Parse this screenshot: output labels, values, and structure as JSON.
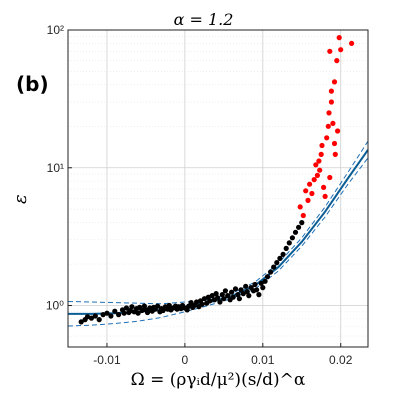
{
  "chart_data": {
    "type": "scatter",
    "panel_label": "(b)",
    "title": "α = 1.2",
    "xlabel": "Ω = (ργᵢd/μ²)(s/d)^α",
    "ylabel": "ε",
    "xlim": [
      -0.015,
      0.0235
    ],
    "ylim": [
      0.5,
      100
    ],
    "yscale": "log",
    "xticks": [
      -0.01,
      0,
      0.01,
      0.02
    ],
    "xtick_labels": [
      "-0.01",
      "0",
      "0.01",
      "0.02"
    ],
    "yticks": [
      1,
      10,
      100
    ],
    "ytick_labels": [
      "10⁰",
      "10¹",
      "10²"
    ],
    "grid": true,
    "colors": {
      "black_points": "#000000",
      "red_points": "#ff0000",
      "fit_line": "#0b5e95",
      "ci_lines": "#1f6fb5",
      "grid": "#cfcfcf",
      "axes": "#222222"
    },
    "series": [
      {
        "values": [
          [
            -0.0133,
            0.76
          ],
          [
            -0.0128,
            0.79
          ],
          [
            -0.0125,
            0.83
          ],
          [
            -0.012,
            0.81
          ],
          [
            -0.0115,
            0.84
          ],
          [
            -0.011,
            0.79
          ],
          [
            -0.0105,
            0.86
          ],
          [
            -0.01,
            0.88
          ],
          [
            -0.0095,
            0.84
          ],
          [
            -0.009,
            0.91
          ],
          [
            -0.0085,
            0.86
          ],
          [
            -0.008,
            0.93
          ],
          [
            -0.0078,
            0.88
          ],
          [
            -0.0075,
            0.96
          ],
          [
            -0.0072,
            0.89
          ],
          [
            -0.007,
            0.92
          ],
          [
            -0.0068,
            0.98
          ],
          [
            -0.0065,
            0.9
          ],
          [
            -0.0062,
            0.95
          ],
          [
            -0.006,
            0.88
          ],
          [
            -0.0058,
            0.97
          ],
          [
            -0.0055,
            0.92
          ],
          [
            -0.0052,
            0.99
          ],
          [
            -0.005,
            0.93
          ],
          [
            -0.0048,
            0.89
          ],
          [
            -0.0045,
            0.96
          ],
          [
            -0.0042,
            0.91
          ],
          [
            -0.004,
            0.97
          ],
          [
            -0.0038,
            0.94
          ],
          [
            -0.0035,
            0.99
          ],
          [
            -0.0032,
            0.9
          ],
          [
            -0.003,
            0.95
          ],
          [
            -0.0028,
            0.92
          ],
          [
            -0.0025,
            0.98
          ],
          [
            -0.0022,
            0.94
          ],
          [
            -0.002,
            1.0
          ],
          [
            -0.0018,
            0.93
          ],
          [
            -0.0015,
            0.96
          ],
          [
            -0.0012,
            0.99
          ],
          [
            -0.001,
            0.94
          ],
          [
            -0.0008,
            0.98
          ],
          [
            -0.0005,
            0.95
          ],
          [
            -0.0003,
            1.0
          ],
          [
            0.0,
            0.96
          ],
          [
            0.0003,
            0.93
          ],
          [
            0.0005,
            0.99
          ],
          [
            0.0008,
            1.05
          ],
          [
            0.001,
            0.97
          ],
          [
            0.0012,
            1.0
          ],
          [
            0.0015,
            1.06
          ],
          [
            0.0018,
            0.98
          ],
          [
            0.002,
            1.08
          ],
          [
            0.0022,
            1.02
          ],
          [
            0.0025,
            1.12
          ],
          [
            0.0028,
            1.04
          ],
          [
            0.003,
            1.15
          ],
          [
            0.0032,
            1.08
          ],
          [
            0.0035,
            1.18
          ],
          [
            0.0038,
            1.1
          ],
          [
            0.004,
            1.22
          ],
          [
            0.0042,
            1.14
          ],
          [
            0.0045,
            1.06
          ],
          [
            0.0048,
            1.2
          ],
          [
            0.005,
            1.12
          ],
          [
            0.0052,
            1.28
          ],
          [
            0.0055,
            1.18
          ],
          [
            0.0058,
            1.1
          ],
          [
            0.006,
            1.25
          ],
          [
            0.0062,
            1.15
          ],
          [
            0.0065,
            1.32
          ],
          [
            0.0068,
            1.2
          ],
          [
            0.007,
            1.12
          ],
          [
            0.0072,
            1.3
          ],
          [
            0.0075,
            1.22
          ],
          [
            0.0078,
            1.38
          ],
          [
            0.008,
            1.26
          ],
          [
            0.0082,
            1.18
          ],
          [
            0.0085,
            1.35
          ],
          [
            0.0088,
            1.28
          ],
          [
            0.009,
            1.42
          ],
          [
            0.0092,
            1.3
          ],
          [
            0.0095,
            1.2
          ],
          [
            0.0098,
            1.45
          ],
          [
            0.01,
            1.35
          ],
          [
            0.0103,
            1.5
          ],
          [
            0.0106,
            1.62
          ],
          [
            0.011,
            1.75
          ],
          [
            0.0114,
            1.9
          ],
          [
            0.0118,
            2.05
          ],
          [
            0.0122,
            2.2
          ],
          [
            0.0126,
            2.35
          ],
          [
            0.013,
            2.6
          ],
          [
            0.0134,
            2.85
          ],
          [
            0.0138,
            3.1
          ],
          [
            0.0142,
            3.4
          ],
          [
            0.0146,
            3.7
          ],
          [
            0.015,
            4.0
          ]
        ]
      },
      {
        "values": [
          [
            0.0148,
            5.2
          ],
          [
            0.0152,
            4.5
          ],
          [
            0.0155,
            6.8
          ],
          [
            0.0158,
            5.8
          ],
          [
            0.016,
            7.6
          ],
          [
            0.0163,
            6.5
          ],
          [
            0.0166,
            8.2
          ],
          [
            0.0168,
            10.5
          ],
          [
            0.017,
            8.8
          ],
          [
            0.0172,
            11.2
          ],
          [
            0.0173,
            9.6
          ],
          [
            0.0175,
            12.5
          ],
          [
            0.0176,
            14.5
          ],
          [
            0.0178,
            7.2
          ],
          [
            0.018,
            6.2
          ],
          [
            0.0182,
            16.5
          ],
          [
            0.0184,
            20.0
          ],
          [
            0.0185,
            25.0
          ],
          [
            0.0186,
            8.5
          ],
          [
            0.0188,
            30.0
          ],
          [
            0.019,
            21.0
          ],
          [
            0.0192,
            42.0
          ],
          [
            0.0193,
            12.5
          ],
          [
            0.0195,
            60.0
          ],
          [
            0.0196,
            18.5
          ],
          [
            0.0198,
            88.0
          ],
          [
            0.02,
            72.0
          ],
          [
            0.0214,
            80.0
          ],
          [
            0.0186,
            70.0
          ],
          [
            0.0188,
            36.0
          ],
          [
            0.0192,
            15.0
          ]
        ]
      }
    ],
    "fit": {
      "x": [
        -0.015,
        -0.012,
        -0.009,
        -0.006,
        -0.003,
        0.0,
        0.003,
        0.006,
        0.009,
        0.012,
        0.015,
        0.018,
        0.021,
        0.0235
      ],
      "y": [
        0.87,
        0.87,
        0.88,
        0.9,
        0.93,
        0.98,
        1.05,
        1.17,
        1.4,
        1.9,
        2.9,
        4.8,
        8.5,
        13.5
      ],
      "ci_upper": [
        1.07,
        1.06,
        1.05,
        1.04,
        1.03,
        1.06,
        1.1,
        1.22,
        1.48,
        2.03,
        3.1,
        5.2,
        9.4,
        15.6
      ],
      "ci_lower": [
        0.71,
        0.72,
        0.74,
        0.77,
        0.82,
        0.9,
        1.0,
        1.12,
        1.32,
        1.78,
        2.7,
        4.4,
        7.7,
        11.8
      ]
    }
  }
}
